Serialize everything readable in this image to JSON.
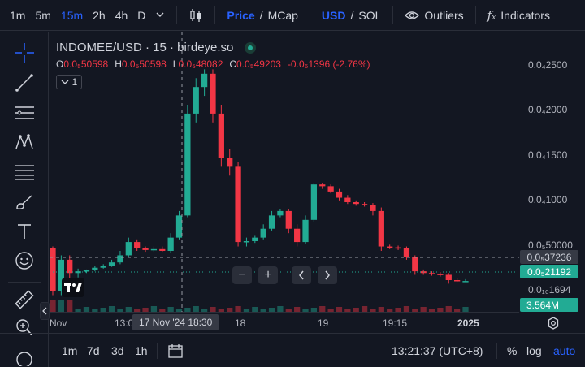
{
  "toolbar": {
    "timeframes": [
      "1m",
      "5m",
      "15m",
      "2h",
      "4h",
      "D"
    ],
    "active_timeframe": "15m",
    "price_label": "Price",
    "mcap_label": "MCap",
    "usd_label": "USD",
    "sol_label": "SOL",
    "slash": "/",
    "outliers_label": "Outliers",
    "indicators_label": "Indicators"
  },
  "legend": {
    "title": "INDOMEE/USD · 15 · birdeye.so",
    "o_key": "O",
    "o_val": "0.0₅50598",
    "h_key": "H",
    "h_val": "0.0₅50598",
    "l_key": "L",
    "l_val": "0.0₅48082",
    "c_key": "C",
    "c_val": "0.0₅49203",
    "change": "-0.0₆1396 (-2.76%)",
    "collapse_count": "1"
  },
  "price_scale": {
    "labels": [
      "0.0₄2500",
      "0.0₄2000",
      "0.0₄1500",
      "0.0₄1000",
      "0.0₅50000",
      "0.0₁₀1694"
    ],
    "crosshair_price": "0.0₅37236",
    "last_price": "0.0₅21192",
    "volume_badge": "3.564M"
  },
  "time_axis": {
    "labels": [
      "Nov",
      "13:0",
      "18",
      "19",
      "19:15",
      "2025"
    ],
    "crosshair_time": "17 Nov '24   18:30"
  },
  "bottom": {
    "ranges": [
      "1m",
      "7d",
      "3d",
      "1h"
    ],
    "clock": "13:21:37 (UTC+8)",
    "percent": "%",
    "log": "log",
    "auto": "auto"
  },
  "colors": {
    "up": "#22ab94",
    "down": "#f23645",
    "accent": "#2962ff"
  },
  "chart_data": {
    "type": "candlestick",
    "pair": "INDOMEE/USD",
    "interval": "15",
    "candles": [
      {
        "o": 0.58,
        "h": 0.6,
        "l": 0.05,
        "c": 0.1,
        "up": false
      },
      {
        "o": 0.1,
        "h": 0.5,
        "l": 0.05,
        "c": 0.45,
        "up": true
      },
      {
        "o": 0.45,
        "h": 0.5,
        "l": 0.2,
        "c": 0.3,
        "up": false
      },
      {
        "o": 0.3,
        "h": 0.35,
        "l": 0.25,
        "c": 0.32,
        "up": true
      },
      {
        "o": 0.32,
        "h": 0.34,
        "l": 0.3,
        "c": 0.33,
        "up": true
      },
      {
        "o": 0.33,
        "h": 0.38,
        "l": 0.32,
        "c": 0.36,
        "up": true
      },
      {
        "o": 0.36,
        "h": 0.4,
        "l": 0.35,
        "c": 0.38,
        "up": true
      },
      {
        "o": 0.38,
        "h": 0.45,
        "l": 0.37,
        "c": 0.42,
        "up": true
      },
      {
        "o": 0.42,
        "h": 0.55,
        "l": 0.4,
        "c": 0.5,
        "up": true
      },
      {
        "o": 0.5,
        "h": 0.7,
        "l": 0.48,
        "c": 0.65,
        "up": true
      },
      {
        "o": 0.65,
        "h": 0.68,
        "l": 0.55,
        "c": 0.58,
        "up": false
      },
      {
        "o": 0.58,
        "h": 0.6,
        "l": 0.54,
        "c": 0.56,
        "up": false
      },
      {
        "o": 0.56,
        "h": 0.6,
        "l": 0.54,
        "c": 0.57,
        "up": true
      },
      {
        "o": 0.57,
        "h": 0.6,
        "l": 0.54,
        "c": 0.55,
        "up": false
      },
      {
        "o": 0.55,
        "h": 0.75,
        "l": 0.53,
        "c": 0.7,
        "up": true
      },
      {
        "o": 0.7,
        "h": 1.0,
        "l": 0.68,
        "c": 0.95,
        "up": true
      },
      {
        "o": 0.95,
        "h": 2.2,
        "l": 0.93,
        "c": 2.1,
        "up": true
      },
      {
        "o": 2.1,
        "h": 2.5,
        "l": 2.0,
        "c": 2.4,
        "up": true
      },
      {
        "o": 2.4,
        "h": 2.6,
        "l": 2.3,
        "c": 2.55,
        "up": true
      },
      {
        "o": 2.55,
        "h": 2.6,
        "l": 2.0,
        "c": 2.1,
        "up": false
      },
      {
        "o": 2.1,
        "h": 2.2,
        "l": 1.5,
        "c": 1.6,
        "up": false
      },
      {
        "o": 1.6,
        "h": 1.7,
        "l": 1.4,
        "c": 1.5,
        "up": false
      },
      {
        "o": 1.5,
        "h": 1.55,
        "l": 0.6,
        "c": 0.65,
        "up": false
      },
      {
        "o": 0.65,
        "h": 0.7,
        "l": 0.6,
        "c": 0.66,
        "up": true
      },
      {
        "o": 0.66,
        "h": 0.72,
        "l": 0.64,
        "c": 0.7,
        "up": true
      },
      {
        "o": 0.7,
        "h": 0.85,
        "l": 0.68,
        "c": 0.8,
        "up": true
      },
      {
        "o": 0.8,
        "h": 1.0,
        "l": 0.78,
        "c": 0.95,
        "up": true
      },
      {
        "o": 0.95,
        "h": 1.02,
        "l": 0.93,
        "c": 1.0,
        "up": true
      },
      {
        "o": 1.0,
        "h": 1.02,
        "l": 0.75,
        "c": 0.8,
        "up": false
      },
      {
        "o": 0.8,
        "h": 0.85,
        "l": 0.6,
        "c": 0.65,
        "up": false
      },
      {
        "o": 0.65,
        "h": 0.95,
        "l": 0.63,
        "c": 0.9,
        "up": true
      },
      {
        "o": 0.9,
        "h": 1.32,
        "l": 0.88,
        "c": 1.3,
        "up": true
      },
      {
        "o": 1.3,
        "h": 1.32,
        "l": 1.25,
        "c": 1.28,
        "up": false
      },
      {
        "o": 1.28,
        "h": 1.3,
        "l": 1.2,
        "c": 1.22,
        "up": false
      },
      {
        "o": 1.22,
        "h": 1.25,
        "l": 1.12,
        "c": 1.15,
        "up": false
      },
      {
        "o": 1.15,
        "h": 1.18,
        "l": 1.08,
        "c": 1.1,
        "up": false
      },
      {
        "o": 1.1,
        "h": 1.12,
        "l": 1.06,
        "c": 1.08,
        "up": false
      },
      {
        "o": 1.08,
        "h": 1.1,
        "l": 1.05,
        "c": 1.07,
        "up": false
      },
      {
        "o": 1.07,
        "h": 1.09,
        "l": 0.95,
        "c": 1.0,
        "up": false
      },
      {
        "o": 1.0,
        "h": 1.04,
        "l": 0.55,
        "c": 0.6,
        "up": false
      },
      {
        "o": 0.6,
        "h": 0.62,
        "l": 0.57,
        "c": 0.59,
        "up": false
      },
      {
        "o": 0.59,
        "h": 0.61,
        "l": 0.56,
        "c": 0.58,
        "up": false
      },
      {
        "o": 0.58,
        "h": 0.6,
        "l": 0.45,
        "c": 0.48,
        "up": false
      },
      {
        "o": 0.48,
        "h": 0.5,
        "l": 0.28,
        "c": 0.32,
        "up": false
      },
      {
        "o": 0.32,
        "h": 0.34,
        "l": 0.28,
        "c": 0.3,
        "up": false
      },
      {
        "o": 0.3,
        "h": 0.32,
        "l": 0.27,
        "c": 0.29,
        "up": false
      },
      {
        "o": 0.29,
        "h": 0.31,
        "l": 0.26,
        "c": 0.28,
        "up": false
      },
      {
        "o": 0.28,
        "h": 0.3,
        "l": 0.18,
        "c": 0.22,
        "up": false
      },
      {
        "o": 0.22,
        "h": 0.24,
        "l": 0.2,
        "c": 0.21,
        "up": false
      },
      {
        "o": 0.21,
        "h": 0.23,
        "l": 0.2,
        "c": 0.21,
        "up": true
      }
    ],
    "y_unit": "x 1e-5 USD",
    "y_range": [
      0,
      2.75
    ]
  }
}
